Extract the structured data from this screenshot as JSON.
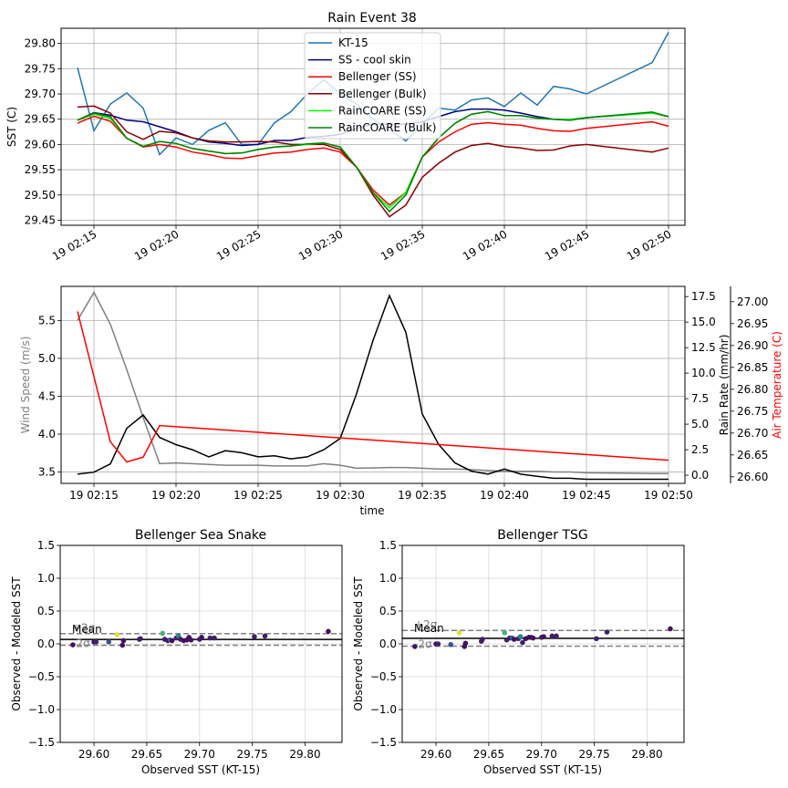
{
  "chart_data": [
    {
      "type": "line",
      "title": "Rain Event 38",
      "xlabel": "",
      "ylabel": "SST (C)",
      "ylim": [
        29.44,
        29.83
      ],
      "xlim": [
        "19 02:13",
        "19 02:51"
      ],
      "yticks": [
        "29.45",
        "29.50",
        "29.55",
        "29.60",
        "29.65",
        "29.70",
        "29.75",
        "29.80"
      ],
      "xticks": [
        "19 02:15",
        "19 02:20",
        "19 02:25",
        "19 02:30",
        "19 02:35",
        "19 02:40",
        "19 02:45",
        "19 02:50"
      ],
      "grid": true,
      "legend": "top-center",
      "colors": {
        "KT-15": "#1f77b4",
        "SS - cool skin": "#000080",
        "Bellenger (SS)": "#ff0000",
        "Bellenger (Bulk)": "#8b0000",
        "RainCOARE (SS)": "#00ff00",
        "RainCOARE (Bulk)": "#008000"
      },
      "x": [
        "19 02:14",
        "19 02:15",
        "19 02:16",
        "19 02:17",
        "19 02:18",
        "19 02:19",
        "19 02:20",
        "19 02:21",
        "19 02:22",
        "19 02:23",
        "19 02:24",
        "19 02:25",
        "19 02:26",
        "19 02:27",
        "19 02:28",
        "19 02:29",
        "19 02:30",
        "19 02:31",
        "19 02:32",
        "19 02:33",
        "19 02:34",
        "19 02:35",
        "19 02:36",
        "19 02:37",
        "19 02:38",
        "19 02:39",
        "19 02:40",
        "19 02:41",
        "19 02:42",
        "19 02:43",
        "19 02:44",
        "19 02:45",
        "19 02:49",
        "19 02:50"
      ],
      "series": [
        {
          "name": "KT-15",
          "values": [
            29.752,
            29.627,
            29.68,
            29.702,
            29.672,
            29.58,
            29.613,
            29.6,
            29.628,
            29.643,
            29.6,
            29.6,
            29.643,
            29.665,
            29.7,
            29.728,
            29.7,
            29.68,
            29.65,
            29.63,
            29.607,
            29.64,
            29.672,
            29.668,
            29.688,
            29.692,
            29.675,
            29.702,
            29.678,
            29.715,
            29.71,
            29.7,
            29.762,
            29.822
          ]
        },
        {
          "name": "SS - cool skin",
          "values": [
            29.648,
            29.663,
            29.658,
            29.648,
            29.645,
            29.635,
            29.625,
            29.613,
            29.605,
            29.602,
            29.598,
            29.6,
            29.608,
            29.608,
            29.614,
            29.616,
            29.62,
            29.632,
            29.64,
            29.64,
            29.64,
            29.645,
            29.655,
            29.665,
            29.67,
            29.67,
            29.668,
            29.662,
            29.655,
            29.65,
            29.648,
            29.653,
            29.663,
            29.655
          ]
        },
        {
          "name": "Bellenger (SS)",
          "values": [
            29.642,
            29.656,
            29.646,
            29.612,
            29.595,
            29.6,
            29.595,
            29.585,
            29.58,
            29.573,
            29.572,
            29.578,
            29.583,
            29.585,
            29.59,
            29.593,
            29.585,
            29.555,
            29.51,
            29.48,
            29.505,
            29.575,
            29.605,
            29.625,
            29.64,
            29.643,
            29.64,
            29.638,
            29.632,
            29.627,
            29.626,
            29.632,
            29.645,
            29.636
          ]
        },
        {
          "name": "Bellenger (Bulk)",
          "values": [
            29.674,
            29.676,
            29.662,
            29.625,
            29.61,
            29.626,
            29.623,
            29.613,
            29.607,
            29.605,
            29.605,
            29.606,
            29.605,
            29.6,
            29.6,
            29.6,
            29.59,
            29.555,
            29.5,
            29.457,
            29.48,
            29.535,
            29.563,
            29.585,
            29.598,
            29.602,
            29.596,
            29.593,
            29.588,
            29.589,
            29.597,
            29.6,
            29.585,
            29.593
          ]
        },
        {
          "name": "RainCOARE (SS)",
          "values": [
            29.648,
            29.66,
            29.652,
            29.612,
            29.596,
            29.606,
            29.602,
            29.592,
            29.587,
            29.582,
            29.583,
            29.59,
            29.595,
            29.597,
            29.6,
            29.603,
            29.595,
            29.555,
            29.505,
            29.475,
            29.505,
            29.575,
            29.613,
            29.642,
            29.66,
            29.665,
            29.657,
            29.657,
            29.652,
            29.65,
            29.65,
            29.653,
            29.662,
            29.655
          ]
        },
        {
          "name": "RainCOARE (Bulk)",
          "values": [
            29.648,
            29.662,
            29.655,
            29.612,
            29.596,
            29.606,
            29.602,
            29.592,
            29.587,
            29.582,
            29.583,
            29.59,
            29.595,
            29.597,
            29.601,
            29.603,
            29.595,
            29.555,
            29.505,
            29.467,
            29.5,
            29.575,
            29.613,
            29.642,
            29.66,
            29.665,
            29.657,
            29.657,
            29.652,
            29.65,
            29.648,
            29.653,
            29.664,
            29.655
          ]
        }
      ]
    },
    {
      "type": "line",
      "title": "",
      "xlabel": "time",
      "ylabel": "Wind Speed (m/s)",
      "ylabel_right": "Rain Rate (mm/hr)",
      "ylabel_right2": "Air Temperature (C)",
      "ylim": [
        3.35,
        5.95
      ],
      "ylim_right": [
        -0.8,
        18.5
      ],
      "ylim_right2": [
        26.585,
        27.035
      ],
      "yticks": [
        "3.5",
        "4.0",
        "4.5",
        "5.0",
        "5.5"
      ],
      "yticks_right": [
        "0.0",
        "2.5",
        "5.0",
        "7.5",
        "10.0",
        "12.5",
        "15.0",
        "17.5"
      ],
      "yticks_right2": [
        "26.60",
        "26.65",
        "26.70",
        "26.75",
        "26.80",
        "26.85",
        "26.90",
        "26.95",
        "27.00"
      ],
      "xticks": [
        "19 02:15",
        "19 02:20",
        "19 02:25",
        "19 02:30",
        "19 02:35",
        "19 02:40",
        "19 02:45",
        "19 02:50"
      ],
      "grid": true,
      "colors": {
        "wind": "#808080",
        "rain": "#000000",
        "air": "#ff0000"
      },
      "x": [
        "19 02:14",
        "19 02:15",
        "19 02:16",
        "19 02:17",
        "19 02:18",
        "19 02:19",
        "19 02:20",
        "19 02:21",
        "19 02:22",
        "19 02:23",
        "19 02:24",
        "19 02:25",
        "19 02:26",
        "19 02:27",
        "19 02:28",
        "19 02:29",
        "19 02:30",
        "19 02:31",
        "19 02:32",
        "19 02:33",
        "19 02:34",
        "19 02:35",
        "19 02:36",
        "19 02:37",
        "19 02:38",
        "19 02:39",
        "19 02:40",
        "19 02:41",
        "19 02:42",
        "19 02:43",
        "19 02:44",
        "19 02:45",
        "19 02:49",
        "19 02:50"
      ],
      "series": [
        {
          "name": "",
          "axis": "left",
          "color": "wind",
          "values": [
            5.5,
            5.87,
            5.45,
            4.85,
            4.22,
            3.61,
            3.62,
            3.61,
            3.6,
            3.59,
            3.59,
            3.59,
            3.58,
            3.58,
            3.58,
            3.61,
            3.59,
            3.55,
            3.555,
            3.56,
            3.56,
            3.55,
            3.54,
            3.54,
            3.53,
            3.52,
            3.51,
            3.51,
            3.51,
            3.5,
            3.5,
            3.49,
            3.48,
            3.48
          ]
        },
        {
          "name": "",
          "axis": "right",
          "color": "rain",
          "values": [
            0.1,
            0.3,
            1.1,
            4.6,
            5.9,
            3.7,
            3.0,
            2.5,
            1.8,
            2.4,
            2.2,
            1.8,
            1.9,
            1.6,
            1.8,
            2.5,
            3.6,
            8.0,
            13.2,
            17.6,
            14.0,
            6.0,
            3.0,
            1.2,
            0.4,
            0.1,
            0.6,
            0.1,
            -0.1,
            -0.3,
            -0.3,
            -0.4,
            -0.4,
            -0.4
          ]
        },
        {
          "name": "",
          "axis": "right2",
          "color": "air",
          "x": [
            "19 02:14",
            "19 02:16",
            "19 02:17",
            "19 02:18",
            "19 02:19",
            "19 02:50"
          ],
          "values": [
            26.978,
            26.68,
            26.634,
            26.645,
            26.717,
            26.638
          ]
        }
      ]
    },
    {
      "type": "scatter",
      "title": "Bellenger Sea Snake",
      "xlabel": "Observed SST (KT-15)",
      "ylabel": "Observed - Modeled SST",
      "xlim": [
        29.568,
        29.835
      ],
      "ylim": [
        -1.5,
        1.5
      ],
      "xticks": [
        "29.60",
        "29.65",
        "29.70",
        "29.75",
        "29.80"
      ],
      "yticks": [
        "−1.5",
        "−1.0",
        "−0.5",
        "0.0",
        "0.5",
        "1.0",
        "1.5"
      ],
      "grid": true,
      "mean": 0.068,
      "upper_2sigma": 0.157,
      "lower_2sigma": -0.021,
      "labels": {
        "upper": "+2σ",
        "mean": "Mean",
        "lower": "-2σ"
      },
      "x": [
        29.58,
        29.6,
        29.602,
        29.614,
        29.622,
        29.627,
        29.628,
        29.643,
        29.644,
        29.665,
        29.667,
        29.67,
        29.672,
        29.674,
        29.678,
        29.68,
        29.682,
        29.685,
        29.688,
        29.69,
        29.692,
        29.7,
        29.702,
        29.71,
        29.714,
        29.752,
        29.762,
        29.822
      ],
      "y": [
        -0.015,
        0.03,
        0.03,
        0.03,
        0.14,
        -0.02,
        0.05,
        0.07,
        0.08,
        0.16,
        0.07,
        0.05,
        0.06,
        0.05,
        0.09,
        0.12,
        0.07,
        0.05,
        0.06,
        0.1,
        0.06,
        0.07,
        0.1,
        0.09,
        0.09,
        0.11,
        0.12,
        0.19
      ],
      "c": [
        0.05,
        0.05,
        0.1,
        0.25,
        0.95,
        0.05,
        0.05,
        0.1,
        0.1,
        0.65,
        0.1,
        0.05,
        0.3,
        0.05,
        0.1,
        0.45,
        0.1,
        0.05,
        0.05,
        0.05,
        0.05,
        0.1,
        0.05,
        0.1,
        0.1,
        0.1,
        0.1,
        0.05
      ]
    },
    {
      "type": "scatter",
      "title": "Bellenger TSG",
      "xlabel": "Observed SST (KT-15)",
      "ylabel": "Observed - Modeled SST",
      "xlim": [
        29.568,
        29.835
      ],
      "ylim": [
        -1.5,
        1.5
      ],
      "xticks": [
        "29.60",
        "29.65",
        "29.70",
        "29.75",
        "29.80"
      ],
      "yticks": [
        "−1.5",
        "−1.0",
        "−0.5",
        "0.0",
        "0.5",
        "1.0",
        "1.5"
      ],
      "grid": true,
      "mean": 0.085,
      "upper_2sigma": 0.205,
      "lower_2sigma": -0.035,
      "labels": {
        "upper": "+2σ",
        "mean": "Mean",
        "lower": "-2σ"
      },
      "x": [
        29.58,
        29.6,
        29.602,
        29.614,
        29.622,
        29.627,
        29.628,
        29.643,
        29.644,
        29.665,
        29.667,
        29.67,
        29.672,
        29.674,
        29.678,
        29.68,
        29.682,
        29.685,
        29.688,
        29.69,
        29.692,
        29.7,
        29.702,
        29.71,
        29.714,
        29.752,
        29.762,
        29.822
      ],
      "y": [
        -0.04,
        0.0,
        0.0,
        -0.01,
        0.17,
        -0.04,
        0.01,
        0.04,
        0.07,
        0.17,
        0.06,
        0.09,
        0.09,
        0.07,
        0.08,
        0.11,
        0.02,
        0.08,
        0.1,
        0.1,
        0.09,
        0.1,
        0.11,
        0.12,
        0.12,
        0.08,
        0.18,
        0.23
      ],
      "c": [
        0.05,
        0.05,
        0.1,
        0.25,
        0.95,
        0.05,
        0.05,
        0.1,
        0.1,
        0.65,
        0.1,
        0.05,
        0.3,
        0.05,
        0.1,
        0.45,
        0.1,
        0.05,
        0.05,
        0.05,
        0.05,
        0.1,
        0.05,
        0.1,
        0.1,
        0.1,
        0.1,
        0.05
      ]
    }
  ]
}
